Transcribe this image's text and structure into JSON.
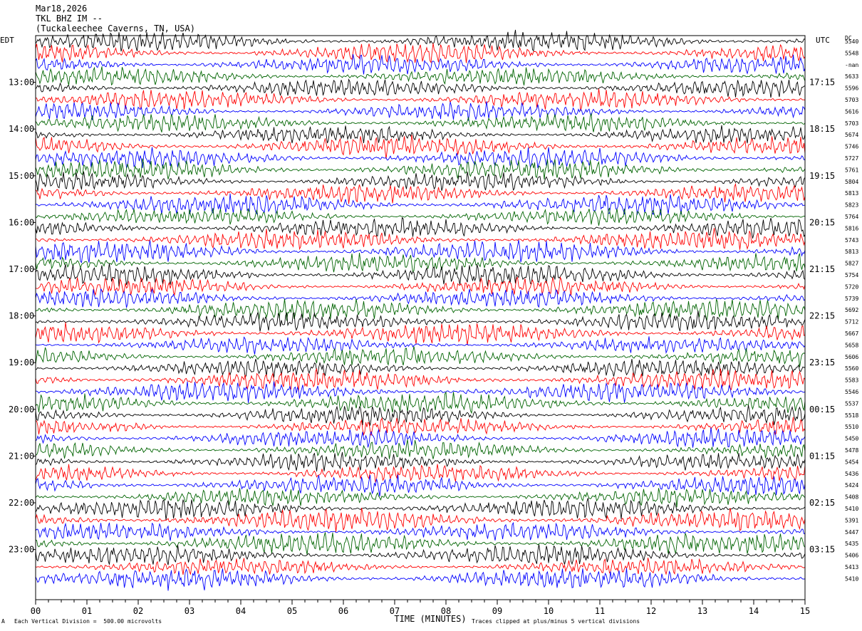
{
  "header": {
    "date": "Mar18,2026",
    "station": "TKL BHZ IM --",
    "location": "(Tuckaleechee Caverns, TN, USA)"
  },
  "left_tz": "EDT",
  "right_tz": "UTC",
  "dc_label": "DC",
  "footer": {
    "scale": "Each Vertical Division =  500.00 microvolts",
    "clip": "Traces clipped at plus/minus 5 vertical divisions",
    "corner_mark": "A"
  },
  "chart_data": {
    "type": "line",
    "xlabel": "TIME (MINUTES)",
    "xlim": [
      0,
      15
    ],
    "x_ticks": [
      "00",
      "01",
      "02",
      "03",
      "04",
      "05",
      "06",
      "07",
      "08",
      "09",
      "10",
      "11",
      "12",
      "13",
      "14",
      "15"
    ],
    "left_time_labels": [
      "13:00",
      "14:00",
      "15:00",
      "16:00",
      "17:00",
      "18:00",
      "19:00",
      "20:00",
      "21:00",
      "22:00",
      "23:00"
    ],
    "right_time_labels": [
      "17:15",
      "18:15",
      "19:15",
      "20:15",
      "21:15",
      "22:15",
      "23:15",
      "00:15",
      "01:15",
      "02:15",
      "03:15"
    ],
    "trace_colors": [
      "#000000",
      "#ff0000",
      "#0000ff",
      "#006400"
    ],
    "dc_offsets": [
      "5540",
      "5548",
      "-nan",
      "5633",
      "5596",
      "5703",
      "5616",
      "5703",
      "5674",
      "5746",
      "5727",
      "5761",
      "5804",
      "5813",
      "5823",
      "5764",
      "5816",
      "5743",
      "5813",
      "5827",
      "5754",
      "5720",
      "5739",
      "5692",
      "5712",
      "5667",
      "5658",
      "5606",
      "5560",
      "5583",
      "5546",
      "5537",
      "5518",
      "5510",
      "5450",
      "5478",
      "5454",
      "5436",
      "5424",
      "5408",
      "5410",
      "5391",
      "5447",
      "5435",
      "5406",
      "5413",
      "5410"
    ]
  }
}
